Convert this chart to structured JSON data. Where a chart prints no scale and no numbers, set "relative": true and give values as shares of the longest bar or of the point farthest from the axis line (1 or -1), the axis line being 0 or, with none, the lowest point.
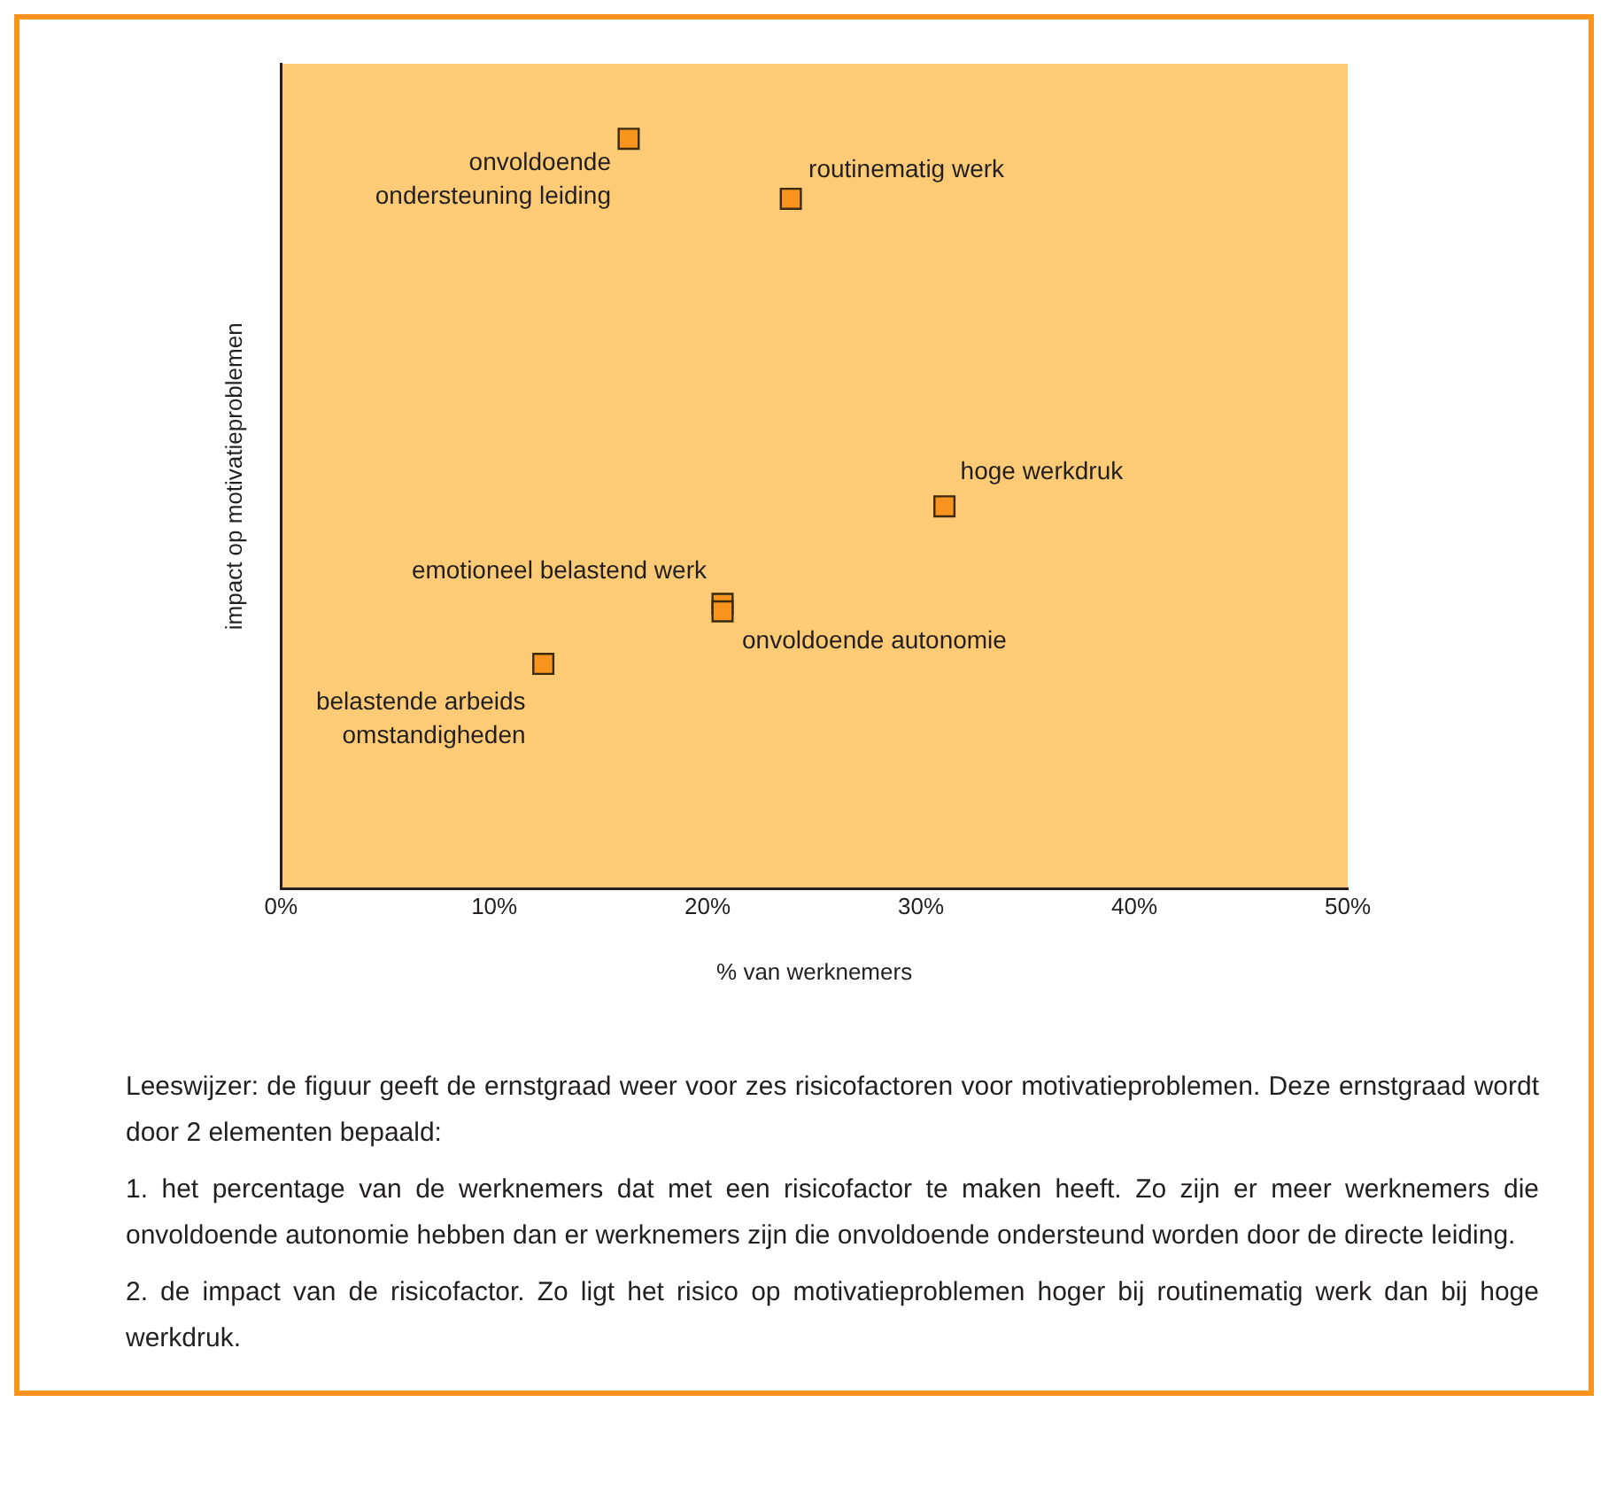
{
  "chart_data": {
    "type": "scatter",
    "xlabel": "% van werknemers",
    "ylabel": "impact op motivatieproblemen",
    "relative": true,
    "marker": "square",
    "grid": false,
    "legend": false,
    "xlim": [
      0,
      50
    ],
    "xticks": [
      {
        "value": 0,
        "label": "0%"
      },
      {
        "value": 10,
        "label": "10%"
      },
      {
        "value": 20,
        "label": "20%"
      },
      {
        "value": 30,
        "label": "30%"
      },
      {
        "value": 40,
        "label": "40%"
      },
      {
        "value": 50,
        "label": "50%"
      }
    ],
    "series": [
      {
        "color": "#f7941d",
        "x": [
          16.3,
          23.9,
          31.1,
          20.7,
          20.7,
          12.3
        ],
        "values": [
          1,
          0.92,
          0.51,
          0.38,
          0.37,
          0.3
        ]
      }
    ],
    "annotations": [
      {
        "text": "onvoldoende\nondersteuning leiding",
        "x": 16.3,
        "y": 1
      },
      {
        "text": "routinematig werk",
        "x": 23.9,
        "y": 0.92
      },
      {
        "text": "hoge werkdruk",
        "x": 31.1,
        "y": 0.51
      },
      {
        "text": "emotioneel belastend werk",
        "x": 20.7,
        "y": 0.38
      },
      {
        "text": "onvoldoende autonomie",
        "x": 20.7,
        "y": 0.37
      },
      {
        "text": "belastende arbeids\nomstandigheden",
        "x": 12.3,
        "y": 0.3
      },
      "Leeswijzer: de figuur geeft de ernstgraad weer voor zes risicofactoren voor motivatieproblemen. Deze ernstgraad wordt door 2 elementen bepaald:",
      "1. het percentage van de werknemers dat met een risicofactor te maken heeft. Zo zijn er meer werknemers die onvoldoende autonomie hebben dan er werknemers zijn die onvoldoende ondersteund worden door de directe leiding.",
      "2. de impact van de risicofactor. Zo ligt het risico op motivatieproblemen hoger bij routinematig werk dan bij hoge werkdruk."
    ]
  }
}
